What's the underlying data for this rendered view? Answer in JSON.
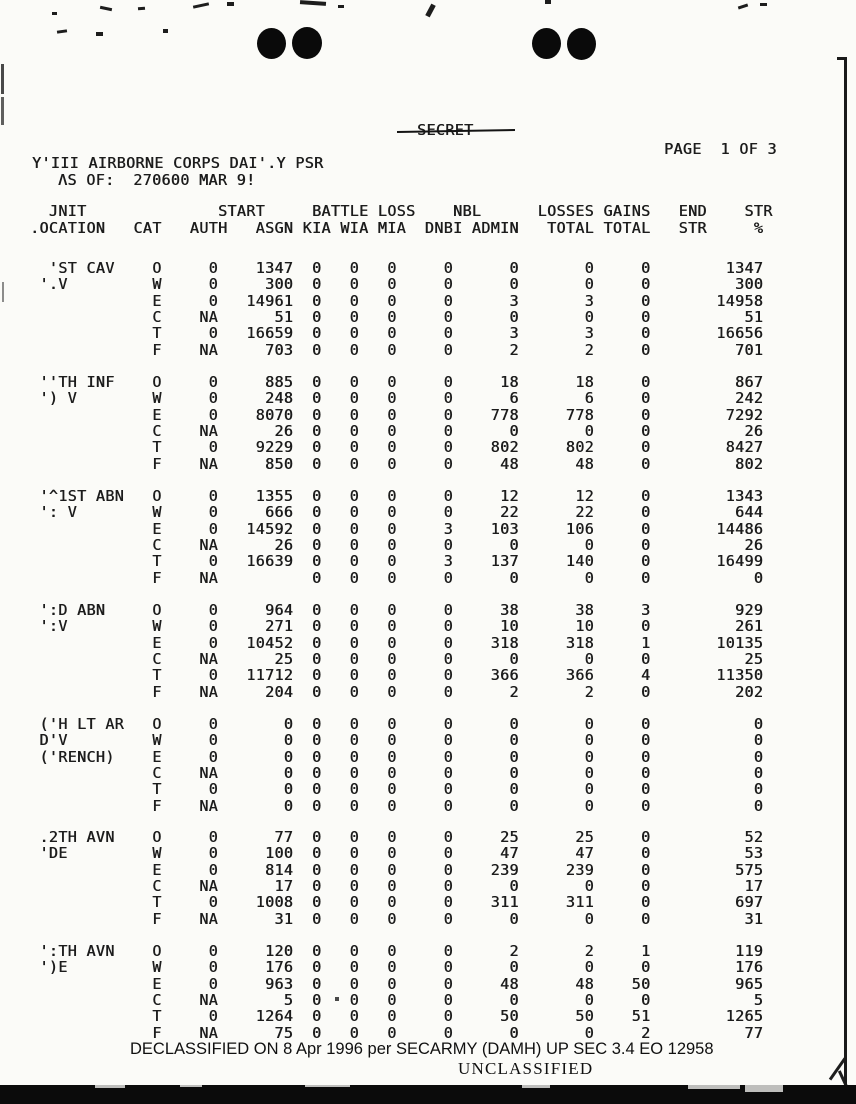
{
  "header": {
    "classification": "SECRET",
    "page_label": "PAGE  1 OF 3",
    "title": "Y'III AIRBORNE CORPS DAI'.Y PSR",
    "as_of": "ΛS OF:  270600 MAR 9!"
  },
  "table": {
    "header_row1": [
      "JNIT",
      "START",
      "BATTLE LOSS",
      "NBL",
      "LOSSES",
      "GAINS",
      "END",
      "STR"
    ],
    "header_row2": [
      ".OCATION",
      "CAT",
      "AUTH",
      "ASGN",
      "KIA",
      "WIA",
      "MIA",
      "DNBI",
      "ADMIN",
      "TOTAL",
      "TOTAL",
      "STR",
      "%"
    ],
    "column_keys": [
      "auth",
      "asgn",
      "kia",
      "wia",
      "mia",
      "dnbi",
      "admin",
      "losses-total",
      "gains-total",
      "end-str"
    ],
    "blocks": [
      {
        "unit_lines": [
          "'ST CAV",
          "'.V"
        ],
        "rows": [
          {
            "cat": "O",
            "values": [
              "0",
              "1347",
              "0",
              "0",
              "0",
              "0",
              "0",
              "0",
              "0",
              "1347"
            ]
          },
          {
            "cat": "W",
            "values": [
              "0",
              "300",
              "0",
              "0",
              "0",
              "0",
              "0",
              "0",
              "0",
              "300"
            ]
          },
          {
            "cat": "E",
            "values": [
              "0",
              "14961",
              "0",
              "0",
              "0",
              "0",
              "3",
              "3",
              "0",
              "14958"
            ]
          },
          {
            "cat": "C",
            "values": [
              "NA",
              "51",
              "0",
              "0",
              "0",
              "0",
              "0",
              "0",
              "0",
              "51"
            ]
          },
          {
            "cat": "T",
            "values": [
              "0",
              "16659",
              "0",
              "0",
              "0",
              "0",
              "3",
              "3",
              "0",
              "16656"
            ]
          },
          {
            "cat": "F",
            "values": [
              "NA",
              "703",
              "0",
              "0",
              "0",
              "0",
              "2",
              "2",
              "0",
              "701"
            ]
          }
        ]
      },
      {
        "unit_lines": [
          "''TH INF",
          "') V"
        ],
        "rows": [
          {
            "cat": "O",
            "values": [
              "0",
              "885",
              "0",
              "0",
              "0",
              "0",
              "18",
              "18",
              "0",
              "867"
            ]
          },
          {
            "cat": "W",
            "values": [
              "0",
              "248",
              "0",
              "0",
              "0",
              "0",
              "6",
              "6",
              "0",
              "242"
            ]
          },
          {
            "cat": "E",
            "values": [
              "0",
              "8070",
              "0",
              "0",
              "0",
              "0",
              "778",
              "778",
              "0",
              "7292"
            ]
          },
          {
            "cat": "C",
            "values": [
              "NA",
              "26",
              "0",
              "0",
              "0",
              "0",
              "0",
              "0",
              "0",
              "26"
            ]
          },
          {
            "cat": "T",
            "values": [
              "0",
              "9229",
              "0",
              "0",
              "0",
              "0",
              "802",
              "802",
              "0",
              "8427"
            ]
          },
          {
            "cat": "F",
            "values": [
              "NA",
              "850",
              "0",
              "0",
              "0",
              "0",
              "48",
              "48",
              "0",
              "802"
            ]
          }
        ]
      },
      {
        "unit_lines": [
          "'^1ST ABN",
          "': V"
        ],
        "rows": [
          {
            "cat": "O",
            "values": [
              "0",
              "1355",
              "0",
              "0",
              "0",
              "0",
              "12",
              "12",
              "0",
              "1343"
            ]
          },
          {
            "cat": "W",
            "values": [
              "0",
              "666",
              "0",
              "0",
              "0",
              "0",
              "22",
              "22",
              "0",
              "644"
            ]
          },
          {
            "cat": "E",
            "values": [
              "0",
              "14592",
              "0",
              "0",
              "0",
              "3",
              "103",
              "106",
              "0",
              "14486"
            ]
          },
          {
            "cat": "C",
            "values": [
              "NA",
              "26",
              "0",
              "0",
              "0",
              "0",
              "0",
              "0",
              "0",
              "26"
            ]
          },
          {
            "cat": "T",
            "values": [
              "0",
              "16639",
              "0",
              "0",
              "0",
              "3",
              "137",
              "140",
              "0",
              "16499"
            ]
          },
          {
            "cat": "F",
            "values": [
              "NA",
              "",
              "0",
              "0",
              "0",
              "0",
              "0",
              "0",
              "0",
              "0"
            ]
          }
        ]
      },
      {
        "unit_lines": [
          "':D ABN",
          "':V"
        ],
        "rows": [
          {
            "cat": "O",
            "values": [
              "0",
              "964",
              "0",
              "0",
              "0",
              "0",
              "38",
              "38",
              "3",
              "929"
            ]
          },
          {
            "cat": "W",
            "values": [
              "0",
              "271",
              "0",
              "0",
              "0",
              "0",
              "10",
              "10",
              "0",
              "261"
            ]
          },
          {
            "cat": "E",
            "values": [
              "0",
              "10452",
              "0",
              "0",
              "0",
              "0",
              "318",
              "318",
              "1",
              "10135"
            ]
          },
          {
            "cat": "C",
            "values": [
              "NA",
              "25",
              "0",
              "0",
              "0",
              "0",
              "0",
              "0",
              "0",
              "25"
            ]
          },
          {
            "cat": "T",
            "values": [
              "0",
              "11712",
              "0",
              "0",
              "0",
              "0",
              "366",
              "366",
              "4",
              "11350"
            ]
          },
          {
            "cat": "F",
            "values": [
              "NA",
              "204",
              "0",
              "0",
              "0",
              "0",
              "2",
              "2",
              "0",
              "202"
            ]
          }
        ]
      },
      {
        "unit_lines": [
          "('H LT AR",
          "D'V",
          "('RENCH)"
        ],
        "rows": [
          {
            "cat": "O",
            "values": [
              "0",
              "0",
              "0",
              "0",
              "0",
              "0",
              "0",
              "0",
              "0",
              "0"
            ]
          },
          {
            "cat": "W",
            "values": [
              "0",
              "0",
              "0",
              "0",
              "0",
              "0",
              "0",
              "0",
              "0",
              "0"
            ]
          },
          {
            "cat": "E",
            "values": [
              "0",
              "0",
              "0",
              "0",
              "0",
              "0",
              "0",
              "0",
              "0",
              "0"
            ]
          },
          {
            "cat": "C",
            "values": [
              "NA",
              "0",
              "0",
              "0",
              "0",
              "0",
              "0",
              "0",
              "0",
              "0"
            ]
          },
          {
            "cat": "T",
            "values": [
              "0",
              "0",
              "0",
              "0",
              "0",
              "0",
              "0",
              "0",
              "0",
              "0"
            ]
          },
          {
            "cat": "F",
            "values": [
              "NA",
              "0",
              "0",
              "0",
              "0",
              "0",
              "0",
              "0",
              "0",
              "0"
            ]
          }
        ]
      },
      {
        "unit_lines": [
          ".2TH AVN",
          "'DE"
        ],
        "rows": [
          {
            "cat": "O",
            "values": [
              "0",
              "77",
              "0",
              "0",
              "0",
              "0",
              "25",
              "25",
              "0",
              "52"
            ]
          },
          {
            "cat": "W",
            "values": [
              "0",
              "100",
              "0",
              "0",
              "0",
              "0",
              "47",
              "47",
              "0",
              "53"
            ]
          },
          {
            "cat": "E",
            "values": [
              "0",
              "814",
              "0",
              "0",
              "0",
              "0",
              "239",
              "239",
              "0",
              "575"
            ]
          },
          {
            "cat": "C",
            "values": [
              "NA",
              "17",
              "0",
              "0",
              "0",
              "0",
              "0",
              "0",
              "0",
              "17"
            ]
          },
          {
            "cat": "T",
            "values": [
              "0",
              "1008",
              "0",
              "0",
              "0",
              "0",
              "311",
              "311",
              "0",
              "697"
            ]
          },
          {
            "cat": "F",
            "values": [
              "NA",
              "31",
              "0",
              "0",
              "0",
              "0",
              "0",
              "0",
              "0",
              "31"
            ]
          }
        ]
      },
      {
        "unit_lines": [
          "':TH AVN",
          "')E"
        ],
        "rows": [
          {
            "cat": "O",
            "values": [
              "0",
              "120",
              "0",
              "0",
              "0",
              "0",
              "2",
              "2",
              "1",
              "119"
            ]
          },
          {
            "cat": "W",
            "values": [
              "0",
              "176",
              "0",
              "0",
              "0",
              "0",
              "0",
              "0",
              "0",
              "176"
            ]
          },
          {
            "cat": "E",
            "values": [
              "0",
              "963",
              "0",
              "0",
              "0",
              "0",
              "48",
              "48",
              "50",
              "965"
            ]
          },
          {
            "cat": "C",
            "values": [
              "NA",
              "5",
              "0",
              "0",
              "0",
              "0",
              "0",
              "0",
              "0",
              "5"
            ]
          },
          {
            "cat": "T",
            "values": [
              "0",
              "1264",
              "0",
              "0",
              "0",
              "0",
              "50",
              "50",
              "51",
              "1265"
            ]
          },
          {
            "cat": "F",
            "values": [
              "NA",
              "75",
              "0",
              "0",
              "0",
              "0",
              "0",
              "0",
              "2",
              "77"
            ]
          }
        ]
      }
    ]
  },
  "footer": {
    "declassified": "DECLASSIFIED ON 8 Apr 1996 per SECARMY (DAMH) UP SEC 3.4 EO 12958",
    "unclassified": "UNCLASSIFIED"
  }
}
